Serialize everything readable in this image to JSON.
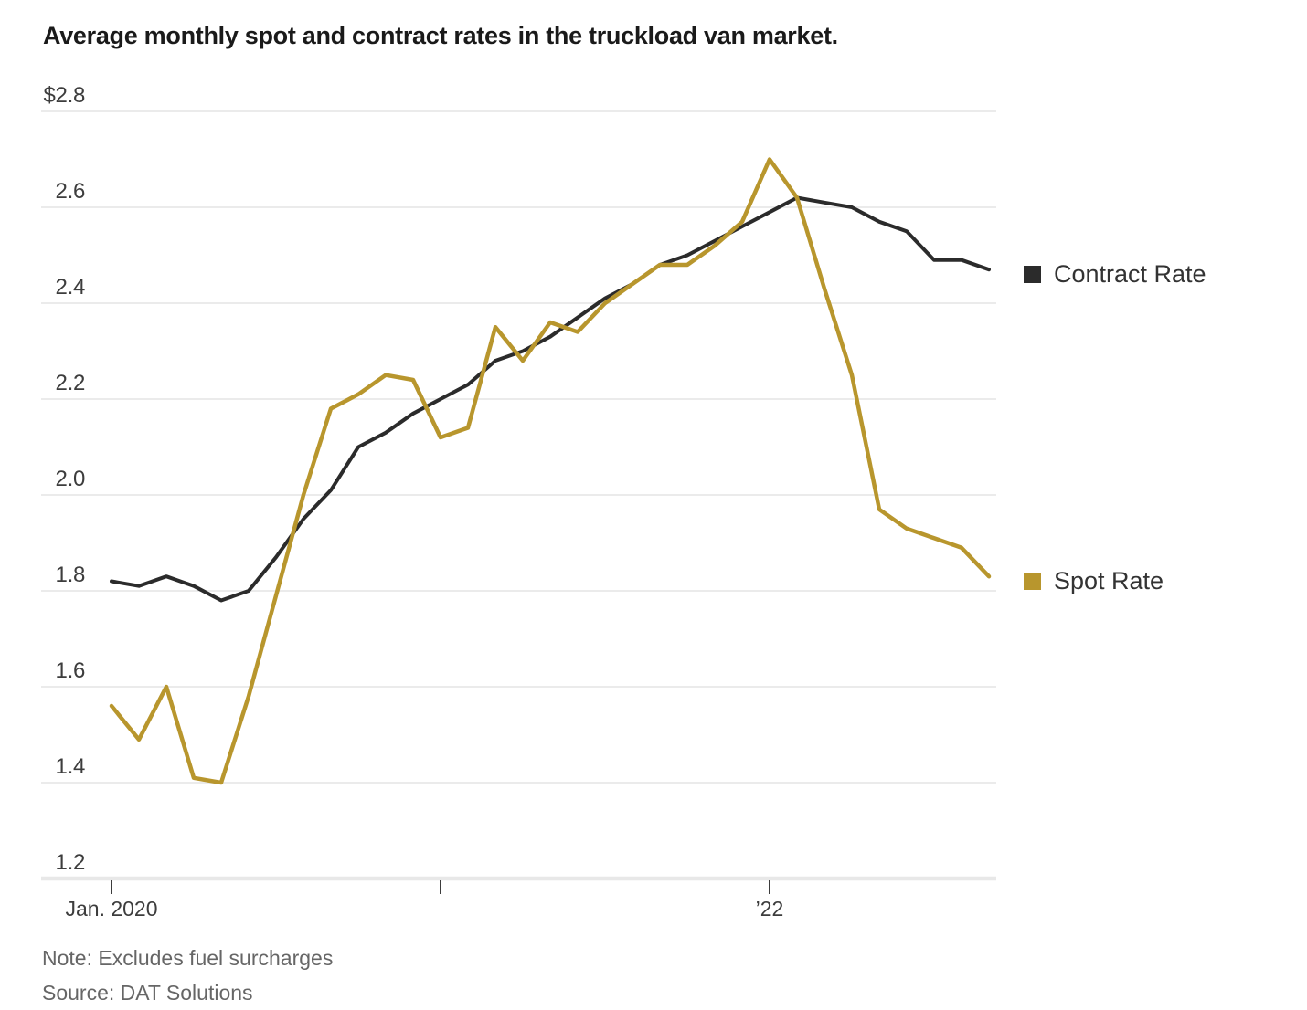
{
  "title": "Average monthly spot and contract rates in the truckload van market.",
  "note": "Note: Excludes fuel surcharges",
  "source": "Source: DAT Solutions",
  "legend": [
    {
      "label": "Contract Rate",
      "color": "#2b2b2b"
    },
    {
      "label": "Spot Rate",
      "color": "#b8962d"
    }
  ],
  "colors": {
    "contract_line": "#2b2b2b",
    "spot_line": "#b8962d",
    "gridline": "#ebebeb",
    "axis_line": "#e8e8e8",
    "tick": "#3c3c3c"
  },
  "chart_data": {
    "type": "line",
    "title": "Average monthly spot and contract rates in the truckload van market.",
    "ylabel": "",
    "xlabel": "",
    "ylim": [
      1.2,
      2.8
    ],
    "ytick_step": 0.2,
    "ytick_labels": [
      "$2.8",
      "2.6",
      "2.4",
      "2.2",
      "2.0",
      "1.8",
      "1.6",
      "1.4",
      "1.2"
    ],
    "ytick_values": [
      2.8,
      2.6,
      2.4,
      2.2,
      2.0,
      1.8,
      1.6,
      1.4,
      1.2
    ],
    "xticks": [
      {
        "month_index": 0,
        "label": "Jan. 2020"
      },
      {
        "month_index": 12,
        "label": ""
      },
      {
        "month_index": 24,
        "label": "’22"
      }
    ],
    "grid": "horizontal",
    "legend_position": "right",
    "x": [
      "Jan 2020",
      "Feb 2020",
      "Mar 2020",
      "Apr 2020",
      "May 2020",
      "Jun 2020",
      "Jul 2020",
      "Aug 2020",
      "Sep 2020",
      "Oct 2020",
      "Nov 2020",
      "Dec 2020",
      "Jan 2021",
      "Feb 2021",
      "Mar 2021",
      "Apr 2021",
      "May 2021",
      "Jun 2021",
      "Jul 2021",
      "Aug 2021",
      "Sep 2021",
      "Oct 2021",
      "Nov 2021",
      "Dec 2021",
      "Jan 2022",
      "Feb 2022",
      "Mar 2022",
      "Apr 2022",
      "May 2022",
      "Jun 2022",
      "Jul 2022",
      "Aug 2022",
      "Sep 2022"
    ],
    "series": [
      {
        "name": "Contract Rate",
        "color": "#2b2b2b",
        "values": [
          1.82,
          1.81,
          1.83,
          1.81,
          1.78,
          1.8,
          1.87,
          1.95,
          2.01,
          2.1,
          2.13,
          2.17,
          2.2,
          2.23,
          2.28,
          2.3,
          2.33,
          2.37,
          2.41,
          2.44,
          2.48,
          2.5,
          2.53,
          2.56,
          2.59,
          2.62,
          2.61,
          2.6,
          2.57,
          2.55,
          2.49,
          2.49,
          2.47
        ]
      },
      {
        "name": "Spot Rate",
        "color": "#b8962d",
        "values": [
          1.56,
          1.49,
          1.6,
          1.41,
          1.4,
          1.58,
          1.79,
          2.0,
          2.18,
          2.21,
          2.25,
          2.24,
          2.12,
          2.14,
          2.35,
          2.28,
          2.36,
          2.34,
          2.4,
          2.44,
          2.48,
          2.48,
          2.52,
          2.57,
          2.7,
          2.62,
          2.43,
          2.25,
          1.97,
          1.93,
          1.91,
          1.89,
          1.83
        ]
      }
    ]
  }
}
